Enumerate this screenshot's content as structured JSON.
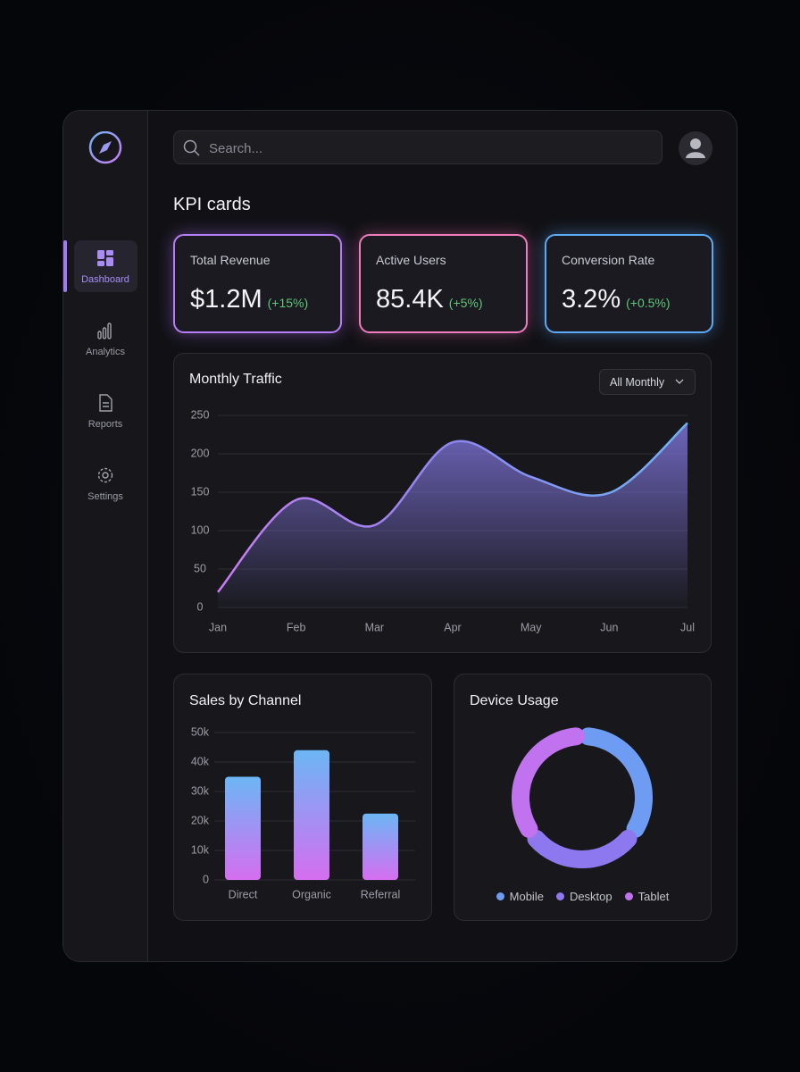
{
  "nav": [
    "Dashboard",
    "Analytics",
    "Reports",
    "Settings"
  ],
  "search": {
    "placeholder": "Search..."
  },
  "section_title": "KPI cards",
  "kpis": [
    {
      "label": "Total Revenue",
      "value": "$1.2M",
      "change": "(+15%)"
    },
    {
      "label": "Active Users",
      "value": "85.4K",
      "change": "(+5%)"
    },
    {
      "label": "Conversion Rate",
      "value": "3.2%",
      "change": "(+0.5%)"
    }
  ],
  "chart_data": [
    {
      "type": "area",
      "title": "Monthly Traffic",
      "filter": "All Monthly",
      "categories": [
        "Jan",
        "Feb",
        "Mar",
        "Apr",
        "May",
        "Jun",
        "Jul"
      ],
      "values": [
        20,
        140,
        107,
        215,
        170,
        149,
        240
      ],
      "ylim": [
        0,
        250
      ],
      "yticks": [
        0,
        50,
        100,
        150,
        200,
        250
      ],
      "grid": true,
      "colors": [
        "#c77df2",
        "#8f86f0",
        "#6fb3f3"
      ]
    },
    {
      "type": "bar",
      "title": "Sales by Channel",
      "categories": [
        "Direct",
        "Organic",
        "Referral"
      ],
      "values": [
        35000,
        44000,
        22500
      ],
      "ylim": [
        0,
        50000
      ],
      "yticks": [
        0,
        {
          "value": 10000,
          "label": "10k"
        },
        {
          "value": 20000,
          "label": "20k"
        },
        {
          "value": 30000,
          "label": "30k"
        },
        {
          "value": 40000,
          "label": "40k"
        },
        {
          "value": 50000,
          "label": "50k"
        }
      ],
      "grid": true,
      "colors": [
        "#6cb6f5",
        "#d56ef0"
      ]
    },
    {
      "type": "donut",
      "title": "Device Usage",
      "categories": [
        "Mobile",
        "Desktop",
        "Tablet"
      ],
      "values": [
        35,
        30,
        35
      ],
      "colors": [
        "#6e9cf2",
        "#8e78f0",
        "#c172ef"
      ],
      "legend": "bottom"
    }
  ]
}
